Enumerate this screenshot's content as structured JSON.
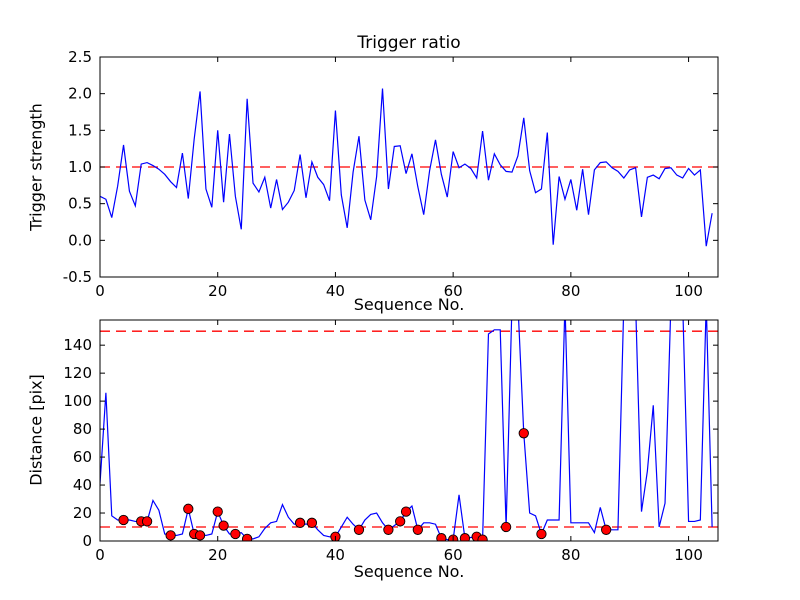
{
  "figure": {
    "background": "#ffffff",
    "axis_color": "#000000"
  },
  "chart_data": [
    {
      "type": "line",
      "title": "Trigger ratio",
      "xlabel": "Sequence No.",
      "ylabel": "Trigger strength",
      "xlim": [
        0,
        105
      ],
      "ylim": [
        -0.5,
        2.5
      ],
      "grid": false,
      "legend": "none",
      "xticks": [
        0,
        20,
        40,
        60,
        80,
        100
      ],
      "xtick_labels": [
        "0",
        "20",
        "40",
        "60",
        "80",
        "100"
      ],
      "yticks": [
        -0.5,
        0.0,
        0.5,
        1.0,
        1.5,
        2.0,
        2.5
      ],
      "ytick_labels": [
        "-0.5",
        "0.0",
        "0.5",
        "1.0",
        "1.5",
        "2.0",
        "2.5"
      ],
      "hlines": [
        {
          "name": "trigger-threshold",
          "y": 1.0,
          "color": "#ff0000",
          "style": "dashed"
        }
      ],
      "series": {
        "name": "trigger-strength",
        "color": "#0000ff",
        "x_is_index": true,
        "y": [
          0.6,
          0.56,
          0.31,
          0.74,
          1.3,
          0.67,
          0.47,
          1.04,
          1.06,
          1.02,
          0.97,
          0.9,
          0.8,
          0.72,
          1.19,
          0.57,
          1.38,
          2.03,
          0.7,
          0.45,
          1.5,
          0.52,
          1.45,
          0.6,
          0.15,
          1.93,
          0.78,
          0.66,
          0.86,
          0.44,
          0.83,
          0.42,
          0.52,
          0.68,
          1.17,
          0.58,
          1.07,
          0.86,
          0.76,
          0.54,
          1.77,
          0.62,
          0.17,
          0.93,
          1.42,
          0.55,
          0.28,
          0.87,
          2.07,
          0.7,
          1.28,
          1.29,
          0.91,
          1.18,
          0.73,
          0.35,
          0.95,
          1.37,
          0.9,
          0.59,
          1.21,
          0.99,
          1.04,
          0.98,
          0.85,
          1.49,
          0.82,
          1.18,
          1.03,
          0.94,
          0.93,
          1.15,
          1.67,
          0.95,
          0.65,
          0.7,
          1.47,
          -0.06,
          0.87,
          0.56,
          0.83,
          0.41,
          0.97,
          0.35,
          0.96,
          1.06,
          1.07,
          0.99,
          0.94,
          0.85,
          0.96,
          0.99,
          0.32,
          0.86,
          0.89,
          0.84,
          0.98,
          0.99,
          0.89,
          0.85,
          0.98,
          0.89,
          0.96,
          -0.08,
          0.37
        ]
      }
    },
    {
      "type": "line",
      "title": "",
      "xlabel": "Sequence No.",
      "ylabel": "Distance [pix]",
      "xlim": [
        0,
        105
      ],
      "ylim": [
        0,
        158
      ],
      "grid": false,
      "legend": "none",
      "clipped_note": "values of 170 are spikes clipped by the axes top",
      "xticks": [
        0,
        20,
        40,
        60,
        80,
        100
      ],
      "xtick_labels": [
        "0",
        "20",
        "40",
        "60",
        "80",
        "100"
      ],
      "yticks": [
        0,
        20,
        40,
        60,
        80,
        100,
        120,
        140
      ],
      "ytick_labels": [
        "0",
        "20",
        "40",
        "60",
        "80",
        "100",
        "120",
        "140"
      ],
      "hlines": [
        {
          "name": "upper-distance-threshold",
          "y": 150,
          "color": "#ff0000",
          "style": "dashed"
        },
        {
          "name": "lower-distance-threshold",
          "y": 10,
          "color": "#ff0000",
          "style": "dashed"
        }
      ],
      "series": {
        "name": "distance",
        "color": "#0000ff",
        "x_is_index": true,
        "y": [
          41,
          106,
          18,
          15,
          15,
          15,
          14,
          14,
          14,
          29,
          22,
          5,
          4,
          4,
          5,
          23,
          5,
          4,
          4,
          5,
          21,
          11,
          5,
          5,
          6,
          1.5,
          1.5,
          3,
          9,
          13,
          14,
          26,
          17,
          12,
          13,
          12,
          13,
          8,
          4,
          3,
          3,
          10,
          17,
          12,
          8,
          15,
          19,
          20,
          13,
          8,
          11,
          14,
          21,
          25,
          8,
          13,
          13,
          12,
          2,
          1,
          1,
          33,
          2,
          2.5,
          3,
          1,
          148,
          151,
          151,
          10,
          170,
          170,
          77,
          20,
          18,
          5,
          15,
          15,
          15,
          170,
          13,
          13,
          13,
          13,
          6,
          24,
          8,
          8,
          8,
          170,
          170,
          170,
          21,
          50,
          97,
          10,
          27,
          170,
          170,
          170,
          14,
          14,
          15,
          170,
          10
        ]
      },
      "markers": {
        "name": "trigger-event-points",
        "shape": "circle",
        "fill": "#ff0000",
        "edge": "#000000",
        "points": [
          [
            4,
            15
          ],
          [
            7,
            14
          ],
          [
            8,
            14
          ],
          [
            12,
            4
          ],
          [
            15,
            23
          ],
          [
            16,
            5
          ],
          [
            17,
            4
          ],
          [
            20,
            21
          ],
          [
            21,
            11
          ],
          [
            23,
            5
          ],
          [
            25,
            1.5
          ],
          [
            34,
            13
          ],
          [
            36,
            13
          ],
          [
            40,
            3
          ],
          [
            44,
            8
          ],
          [
            49,
            8
          ],
          [
            51,
            14
          ],
          [
            52,
            21
          ],
          [
            54,
            8
          ],
          [
            58,
            2
          ],
          [
            60,
            1
          ],
          [
            62,
            2
          ],
          [
            64,
            3
          ],
          [
            65,
            1
          ],
          [
            69,
            10
          ],
          [
            72,
            77
          ],
          [
            75,
            5
          ],
          [
            86,
            8
          ]
        ]
      }
    }
  ]
}
